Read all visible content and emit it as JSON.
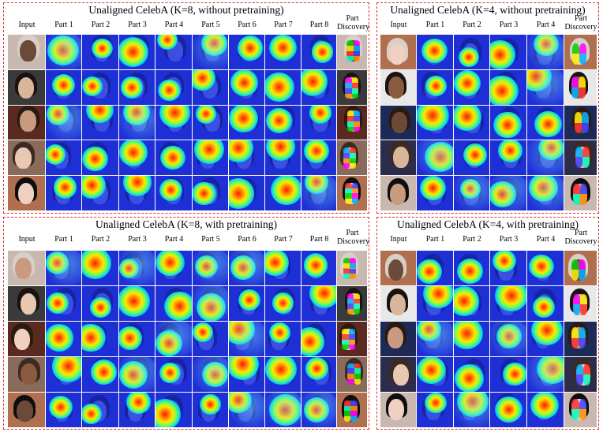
{
  "panels": [
    {
      "id": "tl",
      "title": "Unaligned CelebA (K=8, without pretraining)",
      "columns": [
        "Input",
        "Part 1",
        "Part 2",
        "Part 3",
        "Part 4",
        "Part 5",
        "Part 6",
        "Part 7",
        "Part 8",
        "Part\nDiscovery"
      ]
    },
    {
      "id": "tr",
      "title": "Unaligned CelebA (K=4, without pretraining)",
      "columns": [
        "Input",
        "Part 1",
        "Part 2",
        "Part 3",
        "Part 4",
        "Part\nDiscovery"
      ]
    },
    {
      "id": "bl",
      "title": "Unaligned CelebA (K=8, with pretraining)",
      "columns": [
        "Input",
        "Part 1",
        "Part 2",
        "Part 3",
        "Part 4",
        "Part 5",
        "Part 6",
        "Part 7",
        "Part 8",
        "Part\nDiscovery"
      ]
    },
    {
      "id": "br",
      "title": "Unaligned CelebA (K=4, with pretraining)",
      "columns": [
        "Input",
        "Part 1",
        "Part 2",
        "Part 3",
        "Part 4",
        "Part\nDiscovery"
      ]
    }
  ],
  "colors": {
    "border": "#d9302c",
    "heat_cold": "#1f2fd6",
    "heat_warm": "#ff1a00",
    "part_discovery": [
      "#00d000",
      "#ff00ff",
      "#ffee00",
      "#00b0ff",
      "#ff3030",
      "#4040ff",
      "#00ffc0",
      "#ff9000"
    ]
  }
}
